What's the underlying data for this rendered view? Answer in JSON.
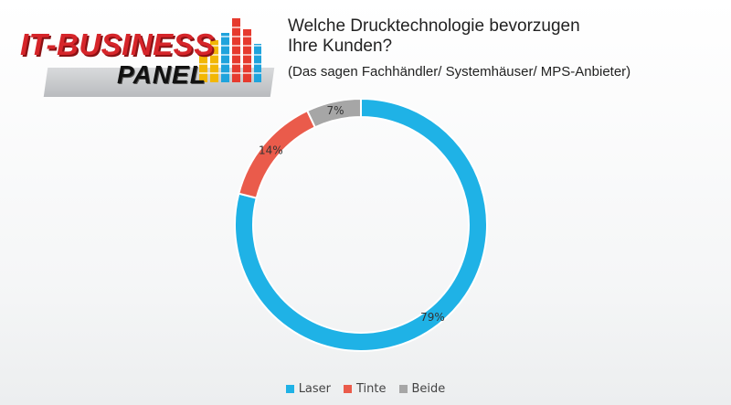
{
  "logo": {
    "main_text": "IT-BUSINESS",
    "sub_text": "PANEL",
    "colors": {
      "main": "#d6252a",
      "sub": "#111111"
    }
  },
  "header": {
    "title_line1": "Welche Drucktechnologie bevorzugen",
    "title_line2": "Ihre Kunden?",
    "subtitle": "(Das sagen Fachhändler/ Systemhäuser/ MPS-Anbieter)"
  },
  "chart_data": {
    "type": "pie",
    "variant": "donut",
    "slices": [
      {
        "name": "Laser",
        "value": 79,
        "label": "79%",
        "color": "#1fb2e6"
      },
      {
        "name": "Tinte",
        "value": 14,
        "label": "14%",
        "color": "#ea5b4b"
      },
      {
        "name": "Beide",
        "value": 7,
        "label": "7%",
        "color": "#a6a6a6"
      }
    ],
    "legend_position": "bottom"
  }
}
